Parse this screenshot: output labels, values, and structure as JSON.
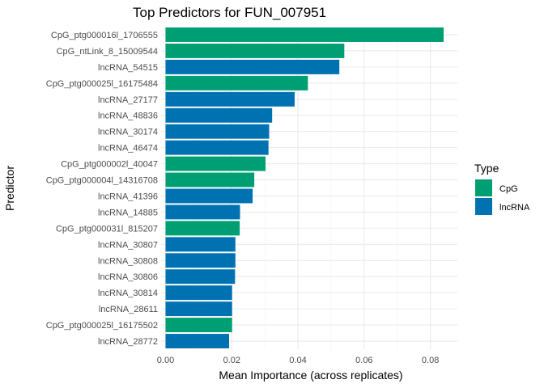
{
  "chart_data": {
    "type": "bar",
    "orientation": "horizontal",
    "title": "Top Predictors for FUN_007951",
    "xlabel": "Mean Importance (across replicates)",
    "ylabel": "Predictor",
    "xlim": [
      -0.0015,
      0.0885
    ],
    "xticks": [
      0.0,
      0.02,
      0.04,
      0.06,
      0.08
    ],
    "xtick_labels": [
      "0.00",
      "0.02",
      "0.04",
      "0.06",
      "0.08"
    ],
    "grid": true,
    "legend_position": "right",
    "legend": {
      "title": "Type",
      "entries": [
        {
          "label": "CpG",
          "color": "#009E73"
        },
        {
          "label": "lncRNA",
          "color": "#0072B2"
        }
      ]
    },
    "categories": [
      "CpG_ptg000016l_1706555",
      "CpG_ntLink_8_15009544",
      "lncRNA_54515",
      "CpG_ptg000025l_16175484",
      "lncRNA_27177",
      "lncRNA_48836",
      "lncRNA_30174",
      "lncRNA_46474",
      "CpG_ptg000002l_40047",
      "CpG_ptg000004l_14316708",
      "lncRNA_41396",
      "lncRNA_14885",
      "CpG_ptg000031l_815207",
      "lncRNA_30807",
      "lncRNA_30808",
      "lncRNA_30806",
      "lncRNA_30814",
      "lncRNA_28611",
      "CpG_ptg000025l_16175502",
      "lncRNA_28772"
    ],
    "values": [
      0.084,
      0.054,
      0.0525,
      0.043,
      0.039,
      0.0322,
      0.0313,
      0.0311,
      0.0302,
      0.0268,
      0.0263,
      0.0225,
      0.0224,
      0.0211,
      0.0211,
      0.021,
      0.0201,
      0.0201,
      0.0201,
      0.0192
    ],
    "types": [
      "CpG",
      "CpG",
      "lncRNA",
      "CpG",
      "lncRNA",
      "lncRNA",
      "lncRNA",
      "lncRNA",
      "CpG",
      "CpG",
      "lncRNA",
      "lncRNA",
      "CpG",
      "lncRNA",
      "lncRNA",
      "lncRNA",
      "lncRNA",
      "lncRNA",
      "CpG",
      "lncRNA"
    ]
  }
}
